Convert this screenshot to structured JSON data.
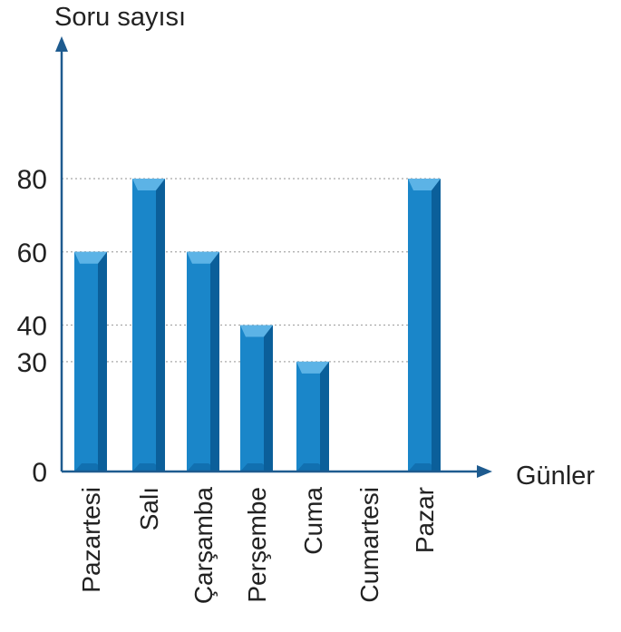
{
  "chart_data": {
    "type": "bar",
    "ylabel": "Soru sayısı",
    "xlabel": "Günler",
    "categories": [
      "Pazartesi",
      "Salı",
      "Çarşamba",
      "Perşembe",
      "Cuma",
      "Cumartesi",
      "Pazar"
    ],
    "values": [
      60,
      80,
      60,
      40,
      30,
      0,
      80
    ],
    "yticks": [
      0,
      30,
      40,
      60,
      80
    ],
    "gridlines": [
      30,
      40,
      60,
      80
    ],
    "ylim": [
      0,
      80
    ],
    "grid": "dotted horizontal",
    "colors": {
      "bar_front": "#1a86c9",
      "bar_side": "#0b5f9a",
      "bar_top": "#5cb3e6",
      "axis": "#1e5b8f",
      "grid": "#a8a8a8"
    }
  }
}
